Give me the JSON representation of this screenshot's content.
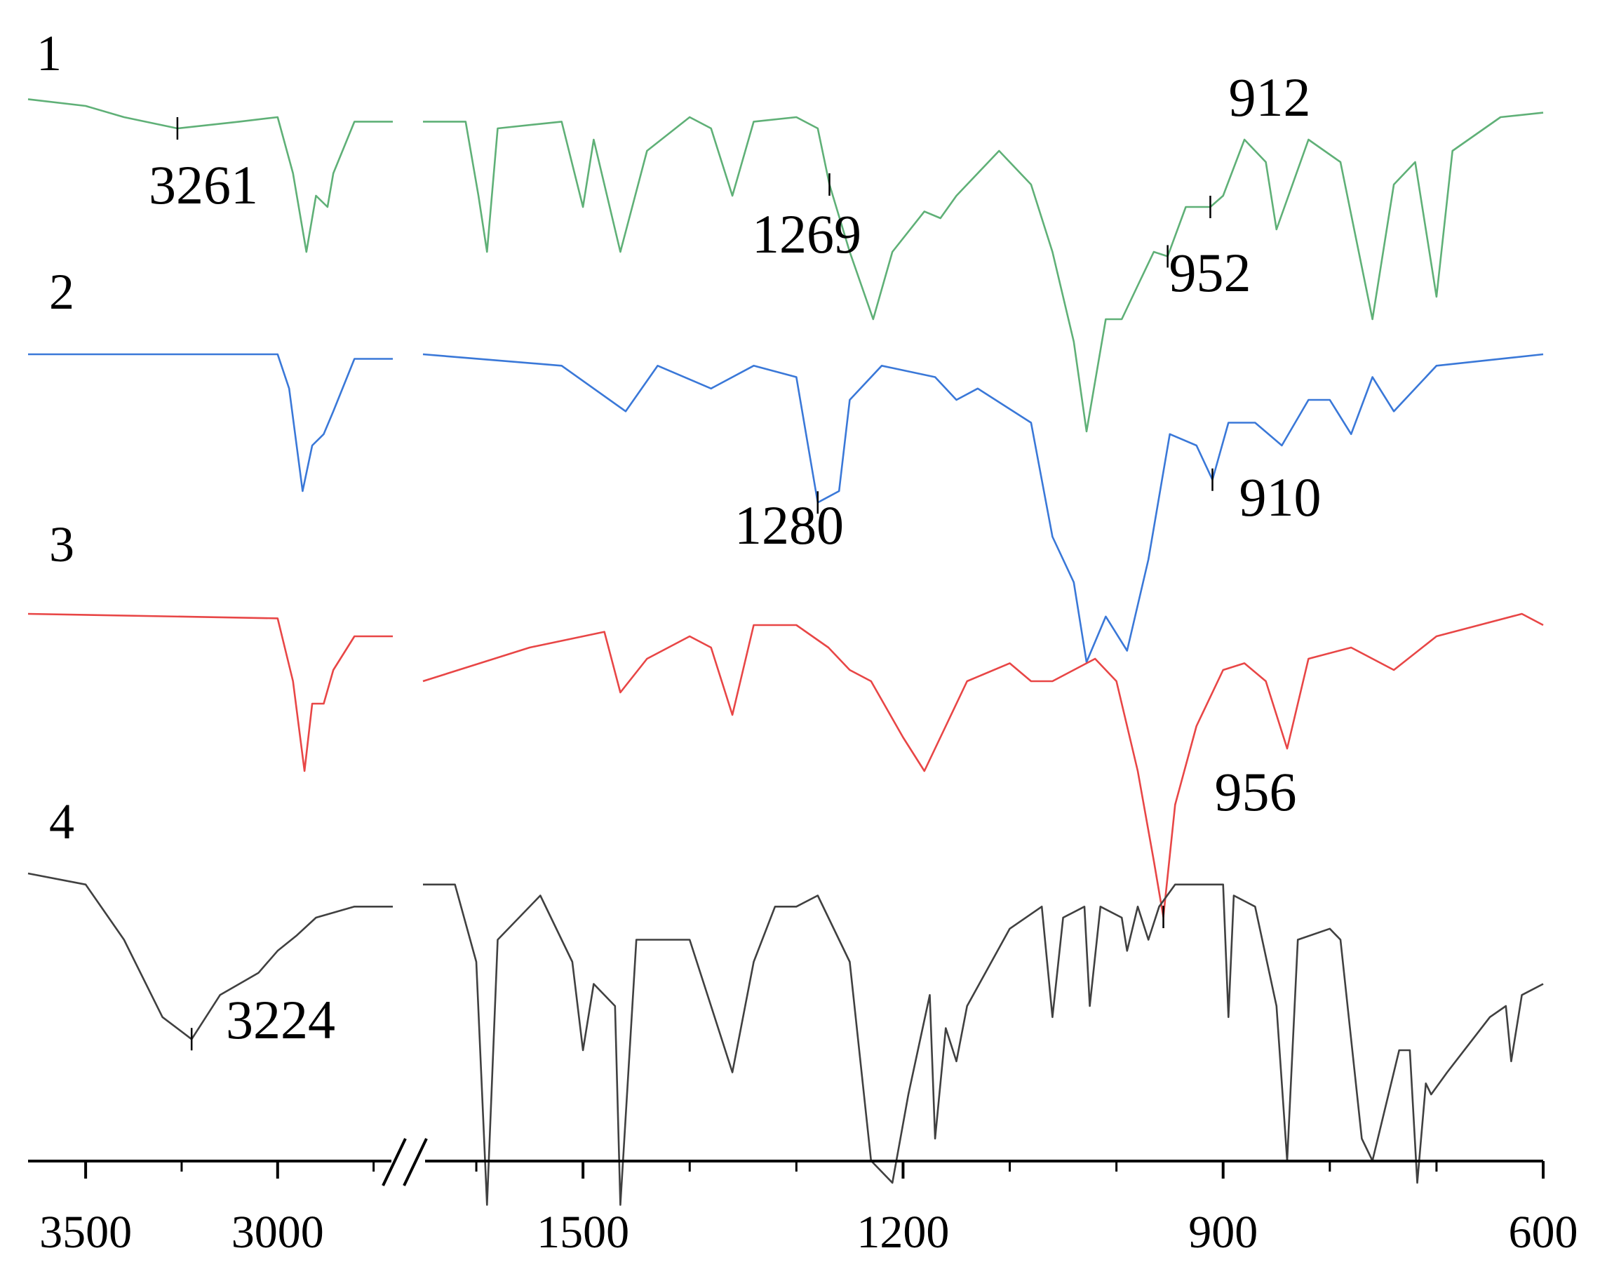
{
  "chart_data": {
    "type": "line",
    "x_axis": {
      "segments": [
        {
          "range": [
            3650,
            2700
          ],
          "ticks": [
            3500,
            3000
          ],
          "minor_ticks": [
            3250,
            2750
          ]
        },
        {
          "range": [
            1650,
            600
          ],
          "ticks": [
            1500,
            1200,
            900,
            600
          ],
          "minor_ticks": [
            1600,
            1400,
            1300,
            1100,
            1000,
            800,
            700
          ]
        }
      ],
      "tick_labels": [
        "3500",
        "3000",
        "1500",
        "1200",
        "900",
        "600"
      ],
      "break": "//"
    },
    "series": [
      {
        "name": "1",
        "color": "#5fb077",
        "points": [
          [
            3650,
            0.02
          ],
          [
            3500,
            0.05
          ],
          [
            3400,
            0.1
          ],
          [
            3261,
            0.15
          ],
          [
            3100,
            0.12
          ],
          [
            3000,
            0.1
          ],
          [
            2960,
            0.35
          ],
          [
            2925,
            0.7
          ],
          [
            2900,
            0.45
          ],
          [
            2870,
            0.5
          ],
          [
            2855,
            0.35
          ],
          [
            2800,
            0.12
          ],
          [
            2700,
            0.12
          ],
          [
            1650,
            0.12
          ],
          [
            1610,
            0.12
          ],
          [
            1598,
            0.45
          ],
          [
            1590,
            0.7
          ],
          [
            1580,
            0.15
          ],
          [
            1520,
            0.12
          ],
          [
            1500,
            0.5
          ],
          [
            1490,
            0.2
          ],
          [
            1465,
            0.7
          ],
          [
            1440,
            0.25
          ],
          [
            1400,
            0.1
          ],
          [
            1380,
            0.15
          ],
          [
            1360,
            0.45
          ],
          [
            1340,
            0.12
          ],
          [
            1300,
            0.1
          ],
          [
            1280,
            0.15
          ],
          [
            1269,
            0.4
          ],
          [
            1250,
            0.7
          ],
          [
            1228,
            1.0
          ],
          [
            1210,
            0.7
          ],
          [
            1180,
            0.52
          ],
          [
            1165,
            0.55
          ],
          [
            1150,
            0.45
          ],
          [
            1110,
            0.25
          ],
          [
            1080,
            0.4
          ],
          [
            1060,
            0.7
          ],
          [
            1040,
            1.1
          ],
          [
            1028,
            1.5
          ],
          [
            1010,
            1.0
          ],
          [
            995,
            1.0
          ],
          [
            980,
            0.85
          ],
          [
            965,
            0.7
          ],
          [
            952,
            0.72
          ],
          [
            935,
            0.5
          ],
          [
            912,
            0.5
          ],
          [
            900,
            0.45
          ],
          [
            880,
            0.2
          ],
          [
            860,
            0.3
          ],
          [
            850,
            0.6
          ],
          [
            820,
            0.2
          ],
          [
            790,
            0.3
          ],
          [
            760,
            1.0
          ],
          [
            740,
            0.4
          ],
          [
            720,
            0.3
          ],
          [
            700,
            0.9
          ],
          [
            685,
            0.25
          ],
          [
            640,
            0.1
          ],
          [
            600,
            0.08
          ]
        ],
        "peak_labels": [
          "3261",
          "1269",
          "952",
          "912"
        ]
      },
      {
        "name": "2",
        "color": "#3a78d8",
        "points": [
          [
            3650,
            0.0
          ],
          [
            3000,
            0.0
          ],
          [
            2970,
            0.15
          ],
          [
            2935,
            0.6
          ],
          [
            2910,
            0.4
          ],
          [
            2880,
            0.35
          ],
          [
            2855,
            0.25
          ],
          [
            2800,
            0.02
          ],
          [
            2700,
            0.02
          ],
          [
            1650,
            0.0
          ],
          [
            1520,
            0.05
          ],
          [
            1460,
            0.25
          ],
          [
            1430,
            0.05
          ],
          [
            1380,
            0.15
          ],
          [
            1340,
            0.05
          ],
          [
            1300,
            0.1
          ],
          [
            1280,
            0.65
          ],
          [
            1260,
            0.6
          ],
          [
            1250,
            0.2
          ],
          [
            1220,
            0.05
          ],
          [
            1170,
            0.1
          ],
          [
            1150,
            0.2
          ],
          [
            1130,
            0.15
          ],
          [
            1080,
            0.3
          ],
          [
            1060,
            0.8
          ],
          [
            1040,
            1.0
          ],
          [
            1028,
            1.35
          ],
          [
            1010,
            1.15
          ],
          [
            990,
            1.3
          ],
          [
            970,
            0.9
          ],
          [
            950,
            0.35
          ],
          [
            925,
            0.4
          ],
          [
            910,
            0.55
          ],
          [
            895,
            0.3
          ],
          [
            870,
            0.3
          ],
          [
            845,
            0.4
          ],
          [
            820,
            0.2
          ],
          [
            800,
            0.2
          ],
          [
            780,
            0.35
          ],
          [
            760,
            0.1
          ],
          [
            740,
            0.25
          ],
          [
            700,
            0.05
          ],
          [
            600,
            0.0
          ]
        ],
        "peak_labels": [
          "1280",
          "910"
        ]
      },
      {
        "name": "3",
        "color": "#e84646",
        "points": [
          [
            3650,
            0.0
          ],
          [
            3000,
            0.02
          ],
          [
            2960,
            0.3
          ],
          [
            2930,
            0.7
          ],
          [
            2910,
            0.4
          ],
          [
            2880,
            0.4
          ],
          [
            2855,
            0.25
          ],
          [
            2800,
            0.1
          ],
          [
            2700,
            0.1
          ],
          [
            1650,
            0.3
          ],
          [
            1550,
            0.15
          ],
          [
            1480,
            0.08
          ],
          [
            1465,
            0.35
          ],
          [
            1440,
            0.2
          ],
          [
            1400,
            0.1
          ],
          [
            1380,
            0.15
          ],
          [
            1360,
            0.45
          ],
          [
            1340,
            0.05
          ],
          [
            1300,
            0.05
          ],
          [
            1270,
            0.15
          ],
          [
            1250,
            0.25
          ],
          [
            1230,
            0.3
          ],
          [
            1200,
            0.55
          ],
          [
            1180,
            0.7
          ],
          [
            1160,
            0.5
          ],
          [
            1140,
            0.3
          ],
          [
            1100,
            0.22
          ],
          [
            1080,
            0.3
          ],
          [
            1060,
            0.3
          ],
          [
            1040,
            0.25
          ],
          [
            1020,
            0.2
          ],
          [
            1000,
            0.3
          ],
          [
            980,
            0.7
          ],
          [
            965,
            1.1
          ],
          [
            956,
            1.35
          ],
          [
            945,
            0.85
          ],
          [
            925,
            0.5
          ],
          [
            900,
            0.25
          ],
          [
            880,
            0.22
          ],
          [
            860,
            0.3
          ],
          [
            840,
            0.6
          ],
          [
            820,
            0.2
          ],
          [
            780,
            0.15
          ],
          [
            740,
            0.25
          ],
          [
            700,
            0.1
          ],
          [
            620,
            0.0
          ],
          [
            600,
            0.05
          ]
        ],
        "peak_labels": [
          "956"
        ]
      },
      {
        "name": "4",
        "color": "#404040",
        "points": [
          [
            3650,
            0.0
          ],
          [
            3500,
            0.05
          ],
          [
            3400,
            0.3
          ],
          [
            3300,
            0.65
          ],
          [
            3224,
            0.75
          ],
          [
            3150,
            0.55
          ],
          [
            3050,
            0.45
          ],
          [
            3000,
            0.35
          ],
          [
            2950,
            0.28
          ],
          [
            2900,
            0.2
          ],
          [
            2800,
            0.15
          ],
          [
            2700,
            0.15
          ],
          [
            1650,
            0.05
          ],
          [
            1620,
            0.05
          ],
          [
            1600,
            0.4
          ],
          [
            1590,
            1.5
          ],
          [
            1580,
            0.3
          ],
          [
            1540,
            0.1
          ],
          [
            1510,
            0.4
          ],
          [
            1500,
            0.8
          ],
          [
            1490,
            0.5
          ],
          [
            1470,
            0.6
          ],
          [
            1465,
            1.5
          ],
          [
            1450,
            0.3
          ],
          [
            1400,
            0.3
          ],
          [
            1380,
            0.6
          ],
          [
            1360,
            0.9
          ],
          [
            1340,
            0.4
          ],
          [
            1320,
            0.15
          ],
          [
            1300,
            0.15
          ],
          [
            1280,
            0.1
          ],
          [
            1250,
            0.4
          ],
          [
            1230,
            1.3
          ],
          [
            1210,
            1.4
          ],
          [
            1195,
            1.0
          ],
          [
            1175,
            0.55
          ],
          [
            1170,
            1.2
          ],
          [
            1160,
            0.7
          ],
          [
            1150,
            0.85
          ],
          [
            1140,
            0.6
          ],
          [
            1100,
            0.25
          ],
          [
            1070,
            0.15
          ],
          [
            1060,
            0.65
          ],
          [
            1050,
            0.2
          ],
          [
            1030,
            0.15
          ],
          [
            1025,
            0.6
          ],
          [
            1015,
            0.15
          ],
          [
            995,
            0.2
          ],
          [
            990,
            0.35
          ],
          [
            980,
            0.15
          ],
          [
            970,
            0.3
          ],
          [
            960,
            0.15
          ],
          [
            945,
            0.05
          ],
          [
            920,
            0.05
          ],
          [
            900,
            0.05
          ],
          [
            895,
            0.65
          ],
          [
            890,
            0.1
          ],
          [
            870,
            0.15
          ],
          [
            850,
            0.6
          ],
          [
            840,
            1.3
          ],
          [
            830,
            0.3
          ],
          [
            800,
            0.25
          ],
          [
            790,
            0.3
          ],
          [
            770,
            1.2
          ],
          [
            760,
            1.3
          ],
          [
            735,
            0.8
          ],
          [
            725,
            0.8
          ],
          [
            718,
            1.4
          ],
          [
            710,
            0.95
          ],
          [
            705,
            1.0
          ],
          [
            690,
            0.9
          ],
          [
            650,
            0.65
          ],
          [
            635,
            0.6
          ],
          [
            630,
            0.85
          ],
          [
            620,
            0.55
          ],
          [
            600,
            0.5
          ]
        ],
        "peak_labels": [
          "3224"
        ]
      }
    ]
  }
}
